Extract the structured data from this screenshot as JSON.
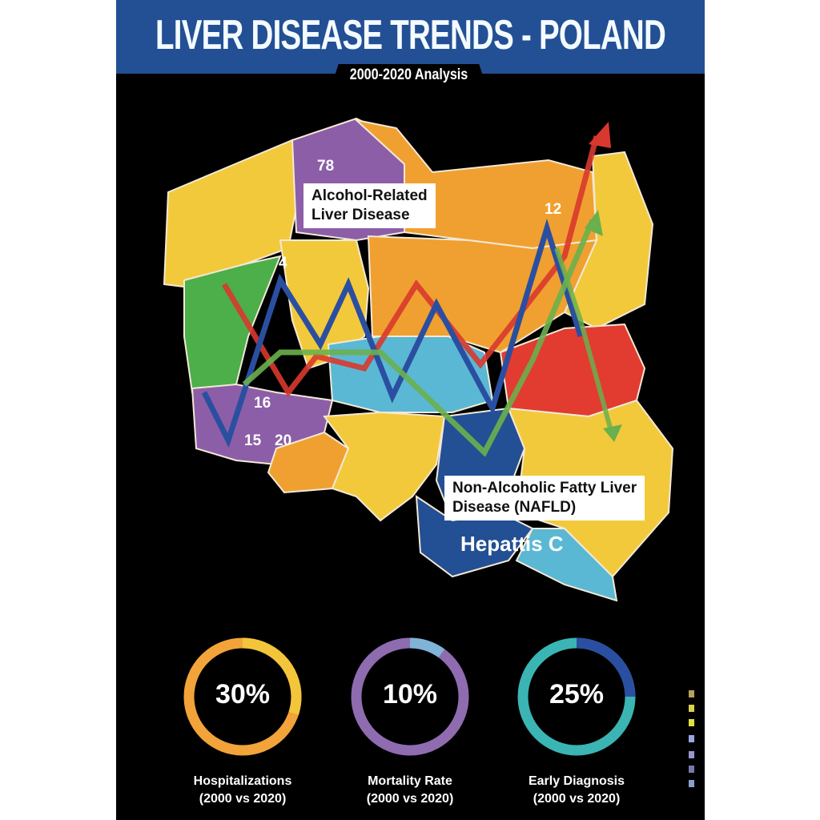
{
  "header": {
    "title": "LIVER DISEASE TRENDS - POLAND",
    "subtitle": "2000-2020 Analysis"
  },
  "map": {
    "annotations": {
      "alcohol": "Alcohol-Related\nLiver Disease",
      "nafld": "Non-Alcoholic Fatty Liver\nDisease (NAFLD)",
      "hepatitis_c": "Hepattis C"
    },
    "region_numbers": [
      "78",
      "4",
      "12",
      "16",
      "15",
      "20"
    ],
    "line_colors": {
      "alcohol": "#d8382e",
      "hepatitis_c": "#2b4fa0",
      "nafld": "#6ab04c"
    }
  },
  "stats": [
    {
      "value": "30%",
      "label": "Hospitalizations",
      "sub": "(2000 vs 2020)",
      "fraction": 0.3,
      "color": "#f2a33a",
      "accent": "#f3c53a"
    },
    {
      "value": "10%",
      "label": "Mortality Rate",
      "sub": "(2000 vs 2020)",
      "fraction": 0.1,
      "color": "#8f6bb0",
      "accent": "#7fb3d8"
    },
    {
      "value": "25%",
      "label": "Early Diagnosis",
      "sub": "(2000 vs 2020)",
      "fraction": 0.25,
      "color": "#3bb4b4",
      "accent": "#2b4fa0"
    }
  ]
}
